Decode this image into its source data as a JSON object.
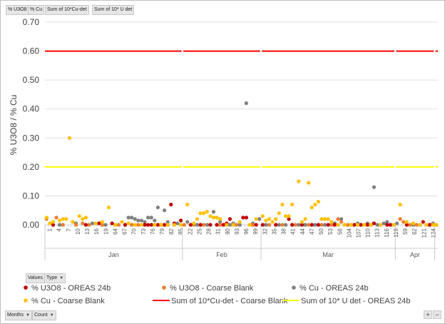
{
  "pivot_fields": {
    "filters": [
      "% U3O8",
      "% Cu",
      "Sum of 10*Cu-det",
      "Sum of 10* U det"
    ],
    "values_button": "Values",
    "type_button": "Type",
    "months_button": "Months",
    "count_button": "Count",
    "expand_label": "+",
    "collapse_label": "−"
  },
  "colors": {
    "u3o8_oreas": "#c00000",
    "u3o8_coarse": "#ed7d31",
    "cu_oreas": "#7f7f7f",
    "cu_coarse": "#ffc000",
    "cu_det_line": "#ff0000",
    "u_det_line": "#ffff00",
    "grid": "#d9d9d9",
    "axis": "#bfbfbf"
  },
  "chart_data": {
    "type": "scatter",
    "ylabel": "% U3O8 / % Cu",
    "ylim": [
      0,
      0.7
    ],
    "yticks": [
      "0.00",
      "0.10",
      "0.20",
      "0.30",
      "0.40",
      "0.50",
      "0.60",
      "0.70"
    ],
    "grid": true,
    "legend_position": "bottom",
    "x_tick_labels": [
      "1",
      "4",
      "7",
      "10",
      "13",
      "16",
      "19",
      "64",
      "67",
      "70",
      "73",
      "76",
      "79",
      "82",
      "85",
      "22",
      "25",
      "28",
      "31",
      "90",
      "93",
      "96",
      "99",
      "32",
      "35",
      "38",
      "41",
      "44",
      "47",
      "50",
      "53",
      "56",
      "104",
      "107",
      "110",
      "113",
      "116",
      "119",
      "59",
      "62",
      "121",
      "124"
    ],
    "months": [
      {
        "label": "Jan",
        "start": 0,
        "end": 42
      },
      {
        "label": "Feb",
        "start": 42,
        "end": 66
      },
      {
        "label": "Mar",
        "start": 66,
        "end": 107
      },
      {
        "label": "Apr",
        "start": 107,
        "end": 119
      }
    ],
    "series": [
      {
        "name": "% U3O8 - OREAS 24b",
        "kind": "marker",
        "points": [
          [
            2,
            0.0
          ],
          [
            8,
            0.01
          ],
          [
            12,
            0.0
          ],
          [
            24,
            0.0
          ],
          [
            30,
            0.0
          ],
          [
            31,
            0.0
          ],
          [
            32,
            0.0
          ],
          [
            34,
            0.0
          ],
          [
            35,
            0.0
          ],
          [
            36,
            0.0
          ],
          [
            39,
            0.005
          ],
          [
            41,
            0.015
          ],
          [
            44,
            0.0
          ],
          [
            47,
            0.0
          ],
          [
            50,
            0.0
          ],
          [
            52,
            0.0
          ],
          [
            54,
            0.0
          ],
          [
            55,
            0.005
          ],
          [
            56,
            0.02
          ],
          [
            60,
            0.025
          ],
          [
            61,
            0.025
          ],
          [
            64,
            0.0
          ],
          [
            66,
            0.0
          ],
          [
            70,
            0.0
          ],
          [
            74,
            0.02
          ],
          [
            75,
            0.0
          ],
          [
            78,
            0.0
          ],
          [
            81,
            0.0
          ],
          [
            83,
            0.0
          ],
          [
            86,
            0.0
          ],
          [
            88,
            0.0
          ],
          [
            94,
            0.0
          ],
          [
            96,
            0.0
          ],
          [
            98,
            0.0
          ],
          [
            99,
            0.0
          ],
          [
            100,
            0.005
          ],
          [
            104,
            0.0
          ],
          [
            105,
            0.0
          ],
          [
            110,
            0.0
          ],
          [
            115,
            0.01
          ],
          [
            117,
            0.0
          ],
          [
            119,
            0.0
          ],
          [
            38,
            0.07
          ],
          [
            20,
            0.005
          ],
          [
            16,
            0.005
          ]
        ]
      },
      {
        "name": "% U3O8 - Coarse Blank",
        "kind": "marker",
        "points": [
          [
            0,
            0.02
          ],
          [
            3,
            0.025
          ],
          [
            5,
            0.0
          ],
          [
            9,
            0.0
          ],
          [
            11,
            0.005
          ],
          [
            13,
            0.0
          ],
          [
            17,
            0.0
          ],
          [
            22,
            0.0
          ],
          [
            26,
            0.0
          ],
          [
            28,
            0.0
          ],
          [
            37,
            0.0
          ],
          [
            42,
            0.0
          ],
          [
            45,
            0.0
          ],
          [
            48,
            0.0
          ],
          [
            53,
            0.0
          ],
          [
            58,
            0.0
          ],
          [
            63,
            0.0
          ],
          [
            68,
            0.0
          ],
          [
            72,
            0.0
          ],
          [
            76,
            0.0
          ],
          [
            80,
            0.0
          ],
          [
            84,
            0.0
          ],
          [
            87,
            0.0
          ],
          [
            89,
            0.02
          ],
          [
            90,
            0.01
          ],
          [
            92,
            0.0
          ],
          [
            97,
            0.0
          ],
          [
            102,
            0.0
          ],
          [
            106,
            0.0
          ],
          [
            108,
            0.02
          ],
          [
            109,
            0.01
          ],
          [
            111,
            0.0
          ],
          [
            113,
            0.0
          ],
          [
            116,
            0.0
          ],
          [
            118,
            0.0
          ]
        ]
      },
      {
        "name": "% Cu - OREAS 24b",
        "kind": "marker",
        "points": [
          [
            4,
            0.0
          ],
          [
            9,
            0.005
          ],
          [
            14,
            0.005
          ],
          [
            18,
            0.0
          ],
          [
            21,
            0.0
          ],
          [
            25,
            0.025
          ],
          [
            26,
            0.025
          ],
          [
            27,
            0.02
          ],
          [
            28,
            0.015
          ],
          [
            29,
            0.015
          ],
          [
            30,
            0.01
          ],
          [
            31,
            0.025
          ],
          [
            32,
            0.025
          ],
          [
            33,
            0.015
          ],
          [
            34,
            0.06
          ],
          [
            36,
            0.05
          ],
          [
            37,
            0.01
          ],
          [
            40,
            0.005
          ],
          [
            43,
            0.01
          ],
          [
            46,
            0.0
          ],
          [
            49,
            0.0
          ],
          [
            51,
            0.045
          ],
          [
            53,
            0.01
          ],
          [
            56,
            0.0
          ],
          [
            57,
            0.005
          ],
          [
            59,
            0.0
          ],
          [
            61,
            0.42
          ],
          [
            63,
            0.005
          ],
          [
            65,
            0.02
          ],
          [
            67,
            0.0
          ],
          [
            71,
            0.0
          ],
          [
            73,
            0.0
          ],
          [
            77,
            0.0
          ],
          [
            79,
            0.0
          ],
          [
            82,
            0.0
          ],
          [
            85,
            0.0
          ],
          [
            88,
            0.005
          ],
          [
            90,
            0.02
          ],
          [
            93,
            0.0
          ],
          [
            95,
            0.005
          ],
          [
            98,
            0.005
          ],
          [
            100,
            0.13
          ],
          [
            101,
            0.0
          ],
          [
            103,
            0.005
          ],
          [
            104,
            0.01
          ],
          [
            105,
            0.0
          ],
          [
            107,
            0.005
          ],
          [
            112,
            0.0
          ],
          [
            114,
            0.0
          ],
          [
            117,
            0.0
          ],
          [
            118,
            0.005
          ]
        ]
      },
      {
        "name": "% Cu - Coarse Blank",
        "kind": "marker",
        "points": [
          [
            0,
            0.025
          ],
          [
            1,
            0.005
          ],
          [
            2,
            0.01
          ],
          [
            4,
            0.015
          ],
          [
            5,
            0.02
          ],
          [
            6,
            0.02
          ],
          [
            7,
            0.3
          ],
          [
            8,
            0.01
          ],
          [
            10,
            0.03
          ],
          [
            11,
            0.02
          ],
          [
            12,
            0.025
          ],
          [
            15,
            0.005
          ],
          [
            17,
            0.01
          ],
          [
            19,
            0.06
          ],
          [
            21,
            0.0
          ],
          [
            23,
            0.01
          ],
          [
            25,
            0.005
          ],
          [
            27,
            0.0
          ],
          [
            29,
            0.0
          ],
          [
            33,
            0.0
          ],
          [
            35,
            0.0
          ],
          [
            37,
            0.0
          ],
          [
            39,
            0.0
          ],
          [
            41,
            0.0
          ],
          [
            43,
            0.07
          ],
          [
            45,
            0.005
          ],
          [
            46,
            0.02
          ],
          [
            47,
            0.04
          ],
          [
            48,
            0.04
          ],
          [
            49,
            0.045
          ],
          [
            50,
            0.03
          ],
          [
            51,
            0.025
          ],
          [
            52,
            0.025
          ],
          [
            53,
            0.02
          ],
          [
            55,
            0.0
          ],
          [
            57,
            0.0
          ],
          [
            59,
            0.01
          ],
          [
            62,
            0.0
          ],
          [
            64,
            0.02
          ],
          [
            66,
            0.03
          ],
          [
            67,
            0.015
          ],
          [
            68,
            0.02
          ],
          [
            69,
            0.01
          ],
          [
            70,
            0.02
          ],
          [
            71,
            0.04
          ],
          [
            72,
            0.07
          ],
          [
            73,
            0.03
          ],
          [
            74,
            0.03
          ],
          [
            75,
            0.07
          ],
          [
            77,
            0.15
          ],
          [
            78,
            0.01
          ],
          [
            79,
            0.02
          ],
          [
            80,
            0.145
          ],
          [
            81,
            0.06
          ],
          [
            82,
            0.07
          ],
          [
            83,
            0.08
          ],
          [
            84,
            0.02
          ],
          [
            85,
            0.02
          ],
          [
            86,
            0.02
          ],
          [
            87,
            0.01
          ],
          [
            89,
            0.0
          ],
          [
            91,
            0.0
          ],
          [
            93,
            0.0
          ],
          [
            95,
            0.0
          ],
          [
            97,
            0.0
          ],
          [
            99,
            0.0
          ],
          [
            102,
            0.0
          ],
          [
            106,
            0.0
          ],
          [
            108,
            0.07
          ],
          [
            110,
            0.01
          ],
          [
            112,
            0.005
          ],
          [
            114,
            0.0
          ],
          [
            116,
            0.0
          ],
          [
            118,
            0.0
          ],
          [
            119,
            0.0
          ]
        ]
      },
      {
        "name": "Sum of 10*Cu-det - Coarse Blank",
        "kind": "line",
        "value": 0.6
      },
      {
        "name": "Sum of 10* U det - OREAS 24b",
        "kind": "line",
        "value": 0.2
      }
    ]
  }
}
